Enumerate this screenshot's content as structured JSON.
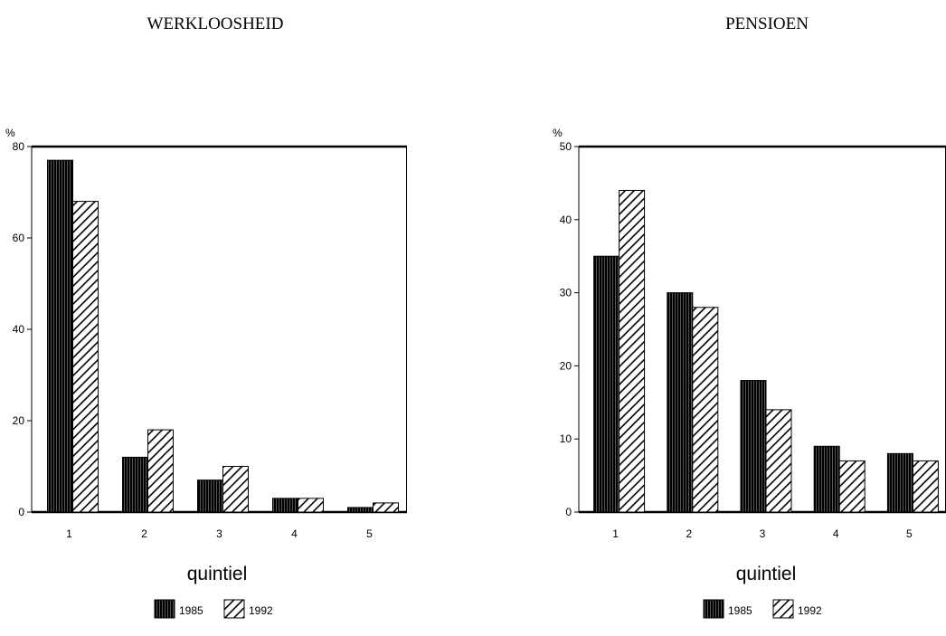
{
  "chart_data": [
    {
      "type": "bar",
      "title": "WERKLOOSHEID",
      "unit_label": "%",
      "xlabel": "quintiel",
      "categories": [
        "1",
        "2",
        "3",
        "4",
        "5"
      ],
      "ylim": [
        0,
        80
      ],
      "yticks": [
        0,
        20,
        40,
        60,
        80
      ],
      "series": [
        {
          "name": "1985",
          "values": [
            77,
            12,
            7,
            3,
            1
          ]
        },
        {
          "name": "1992",
          "values": [
            68,
            18,
            10,
            3,
            2
          ]
        }
      ],
      "legend_position": "bottom"
    },
    {
      "type": "bar",
      "title": "PENSIOEN",
      "unit_label": "%",
      "xlabel": "quintiel",
      "categories": [
        "1",
        "2",
        "3",
        "4",
        "5"
      ],
      "ylim": [
        0,
        50
      ],
      "yticks": [
        0,
        10,
        20,
        30,
        40,
        50
      ],
      "series": [
        {
          "name": "1985",
          "values": [
            35,
            30,
            18,
            9,
            8
          ]
        },
        {
          "name": "1992",
          "values": [
            44,
            28,
            14,
            7,
            7
          ]
        }
      ],
      "legend_position": "bottom"
    }
  ]
}
